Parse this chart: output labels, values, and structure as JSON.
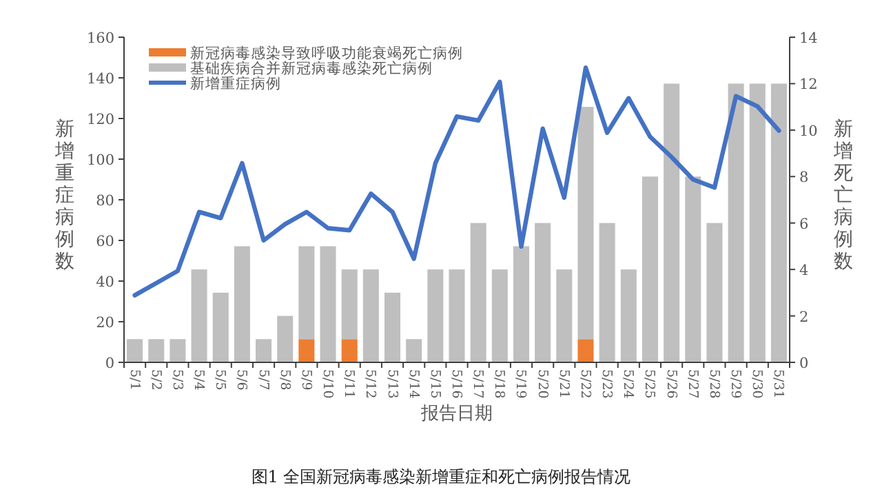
{
  "chart_data": {
    "type": "bar",
    "categories": [
      "5/1",
      "5/2",
      "5/3",
      "5/4",
      "5/5",
      "5/6",
      "5/7",
      "5/8",
      "5/9",
      "5/10",
      "5/11",
      "5/12",
      "5/13",
      "5/14",
      "5/15",
      "5/16",
      "5/17",
      "5/18",
      "5/19",
      "5/20",
      "5/21",
      "5/22",
      "5/23",
      "5/24",
      "5/25",
      "5/26",
      "5/27",
      "5/28",
      "5/29",
      "5/30",
      "5/31"
    ],
    "stacked": true,
    "series": [
      {
        "name": "新冠病毒感染导致呼吸功能衰竭死亡病例",
        "axis": "y2",
        "color": "#ed7d31",
        "values": [
          0,
          0,
          0,
          0,
          0,
          0,
          0,
          0,
          1,
          0,
          1,
          0,
          0,
          0,
          0,
          0,
          0,
          0,
          0,
          0,
          0,
          1,
          0,
          0,
          0,
          0,
          0,
          0,
          0,
          0,
          0
        ]
      },
      {
        "name": "基础疾病合并新冠病毒感染死亡病例",
        "axis": "y2",
        "color": "#bfbfbf",
        "values": [
          1,
          1,
          1,
          4,
          3,
          5,
          1,
          2,
          4,
          5,
          3,
          4,
          3,
          1,
          4,
          4,
          6,
          4,
          5,
          6,
          4,
          10,
          6,
          4,
          8,
          12,
          8,
          6,
          12,
          12,
          12
        ]
      },
      {
        "name": "新增重症病例",
        "type": "line",
        "axis": "y",
        "color": "#4472c4",
        "values": [
          33,
          39,
          45,
          74,
          71,
          98,
          60,
          68,
          74,
          66,
          65,
          83,
          74,
          51,
          98,
          121,
          119,
          138,
          57,
          115,
          81,
          145,
          113,
          130,
          111,
          101,
          90,
          86,
          131,
          126,
          114
        ]
      }
    ],
    "xlabel": "报告日期",
    "ylabel": "新增重症病例数",
    "y2label": "新增死亡病例数",
    "ylim": [
      0,
      160
    ],
    "yticks": [
      0,
      20,
      40,
      60,
      80,
      100,
      120,
      140,
      160
    ],
    "y2lim": [
      0,
      14
    ],
    "y2ticks": [
      0,
      2,
      4,
      6,
      8,
      10,
      12,
      14
    ],
    "legend": "top left",
    "grid": false,
    "marker": "none",
    "line_style": "solid",
    "annotations": [
      "图1 全国新冠病毒感染新增重症和死亡病例报告情况"
    ]
  }
}
